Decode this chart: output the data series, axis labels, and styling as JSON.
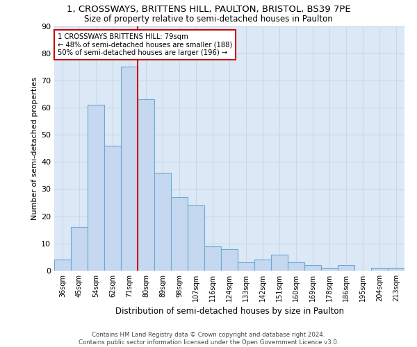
{
  "title_line1": "1, CROSSWAYS, BRITTENS HILL, PAULTON, BRISTOL, BS39 7PE",
  "title_line2": "Size of property relative to semi-detached houses in Paulton",
  "xlabel": "Distribution of semi-detached houses by size in Paulton",
  "ylabel": "Number of semi-detached properties",
  "categories": [
    "36sqm",
    "45sqm",
    "54sqm",
    "62sqm",
    "71sqm",
    "80sqm",
    "89sqm",
    "98sqm",
    "107sqm",
    "116sqm",
    "124sqm",
    "133sqm",
    "142sqm",
    "151sqm",
    "160sqm",
    "169sqm",
    "178sqm",
    "186sqm",
    "195sqm",
    "204sqm",
    "213sqm"
  ],
  "values": [
    4,
    16,
    61,
    46,
    75,
    63,
    36,
    27,
    24,
    9,
    8,
    3,
    4,
    6,
    3,
    2,
    1,
    2,
    0,
    1,
    1
  ],
  "bar_color": "#c5d8f0",
  "bar_edge_color": "#6aaad4",
  "property_label": "1 CROSSWAYS BRITTENS HILL: 79sqm",
  "smaller_pct": 48,
  "smaller_count": 188,
  "larger_pct": 50,
  "larger_count": 196,
  "vline_bin_index": 5,
  "annotation_box_color": "#cc0000",
  "ylim": [
    0,
    90
  ],
  "yticks": [
    0,
    10,
    20,
    30,
    40,
    50,
    60,
    70,
    80,
    90
  ],
  "grid_color": "#c8d8e8",
  "background_color": "#dce8f5",
  "footer1": "Contains HM Land Registry data © Crown copyright and database right 2024.",
  "footer2": "Contains public sector information licensed under the Open Government Licence v3.0."
}
